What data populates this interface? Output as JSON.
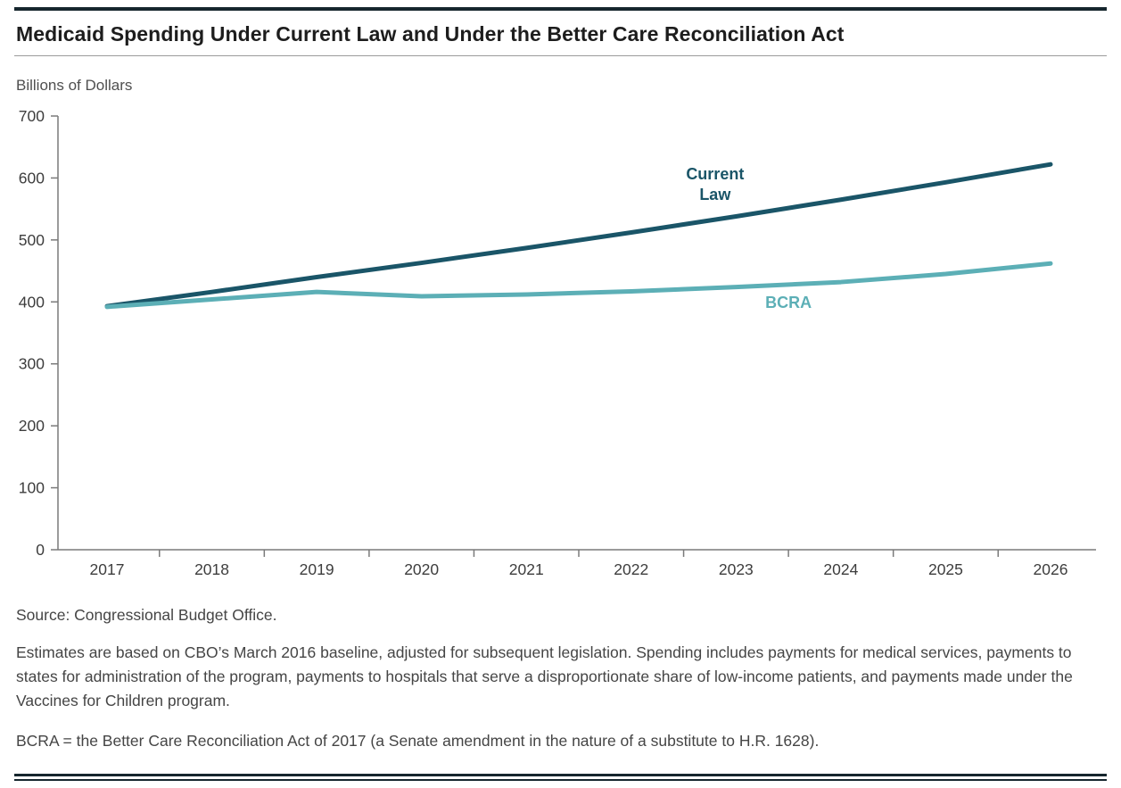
{
  "page": {
    "title": "Medicaid Spending Under Current Law and Under the Better Care Reconciliation Act",
    "ylabel": "Billions of Dollars",
    "source": "Source: Congressional Budget Office.",
    "note1": "Estimates are based on CBO’s March 2016 baseline, adjusted for subsequent legislation. Spending includes payments for medical services, payments to states for administration of the program, payments to hospitals that serve a disproportionate share of low-income patients, and payments made under the Vaccines for Children program.",
    "note2": "BCRA = the Better Care Reconciliation Act of 2017 (a Senate amendment in the nature of a substitute to H.R. 1628)."
  },
  "chart_data": {
    "type": "line",
    "title": "Medicaid Spending Under Current Law and Under the Better Care Reconciliation Act",
    "xlabel": "",
    "ylabel": "Billions of Dollars",
    "x": [
      2017,
      2018,
      2019,
      2020,
      2021,
      2022,
      2023,
      2024,
      2025,
      2026
    ],
    "series": [
      {
        "name": "Current Law",
        "color": "#1a5568",
        "values": [
          393,
          416,
          440,
          463,
          487,
          512,
          538,
          565,
          593,
          622
        ]
      },
      {
        "name": "BCRA",
        "color": "#5cafb6",
        "values": [
          392,
          404,
          416,
          409,
          412,
          417,
          424,
          432,
          445,
          462
        ]
      }
    ],
    "ylim": [
      0,
      700
    ],
    "yticks": [
      0,
      100,
      200,
      300,
      400,
      500,
      600,
      700
    ],
    "grid": false,
    "legend_position": "inline-annotations",
    "annotations": [
      {
        "text": "Current\nLaw",
        "x": 2022.8,
        "y": 598,
        "color": "#1a5568",
        "series": "Current Law"
      },
      {
        "text": "BCRA",
        "x": 2023.5,
        "y": 390,
        "color": "#5cafb6",
        "series": "BCRA"
      }
    ],
    "axis_color": "#7a7a7a",
    "tick_label_color": "#3d3d3d"
  }
}
